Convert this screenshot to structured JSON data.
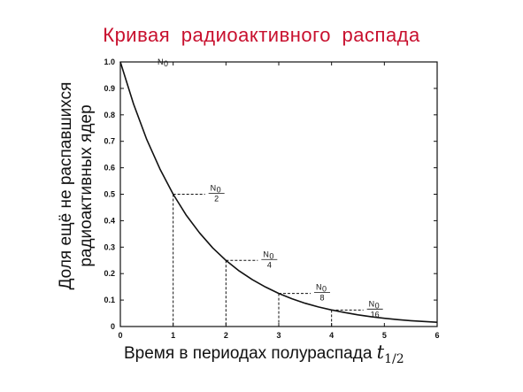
{
  "chart_data": {
    "type": "line",
    "title": "Кривая  радиоактивного  распада",
    "xlabel_text": "Время в периодах полураспада",
    "xlabel_symbol": "t",
    "xlabel_subscript": "1/2",
    "ylabel_line1": "Доля ещё не распавшихся",
    "ylabel_line2": "радиоактивных ядер",
    "xlim": [
      0,
      6
    ],
    "ylim": [
      0,
      1.0
    ],
    "x_ticks": [
      "0",
      "1",
      "2",
      "3",
      "4",
      "5",
      "6"
    ],
    "y_ticks": [
      "0",
      "0.1",
      "0.2",
      "0.3",
      "0.4",
      "0.5",
      "0.6",
      "0.7",
      "0.8",
      "0.9",
      "1.0"
    ],
    "x_tick_values": [
      0,
      1,
      2,
      3,
      4,
      5,
      6
    ],
    "y_tick_values": [
      0,
      0.1,
      0.2,
      0.3,
      0.4,
      0.5,
      0.6,
      0.7,
      0.8,
      0.9,
      1.0
    ],
    "x": [
      0,
      0.25,
      0.5,
      0.75,
      1,
      1.25,
      1.5,
      1.75,
      2,
      2.25,
      2.5,
      2.75,
      3,
      3.25,
      3.5,
      3.75,
      4,
      4.25,
      4.5,
      4.75,
      5,
      5.25,
      5.5,
      5.75,
      6
    ],
    "y": [
      1.0,
      0.841,
      0.707,
      0.595,
      0.5,
      0.42,
      0.354,
      0.297,
      0.25,
      0.21,
      0.177,
      0.149,
      0.125,
      0.105,
      0.088,
      0.074,
      0.0625,
      0.053,
      0.044,
      0.037,
      0.031,
      0.026,
      0.022,
      0.019,
      0.016
    ],
    "annotations": [
      {
        "x": 0,
        "y": 1.0,
        "label_top": "N",
        "label_sub": "0",
        "label_bottom": ""
      },
      {
        "x": 1,
        "y": 0.5,
        "label_top": "N",
        "label_sub": "0",
        "label_bottom": "2"
      },
      {
        "x": 2,
        "y": 0.25,
        "label_top": "N",
        "label_sub": "0",
        "label_bottom": "4"
      },
      {
        "x": 3,
        "y": 0.125,
        "label_top": "N",
        "label_sub": "0",
        "label_bottom": "8"
      },
      {
        "x": 4,
        "y": 0.0625,
        "label_top": "N",
        "label_sub": "0",
        "label_bottom": "16"
      }
    ],
    "grid": false,
    "colors": {
      "title": "#c8102e",
      "curve": "#111111",
      "axes": "#111111"
    }
  }
}
